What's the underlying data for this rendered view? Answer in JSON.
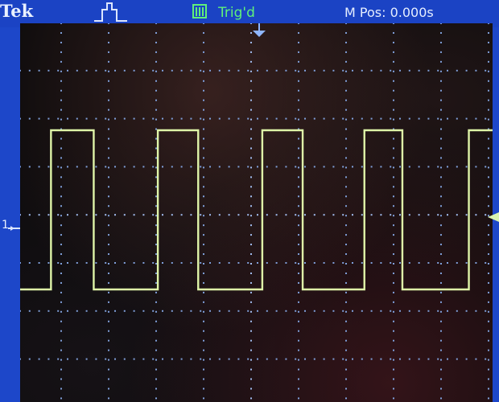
{
  "header": {
    "brand": "Tek",
    "trigger_status": "Trig'd",
    "m_pos_label": "M Pos:",
    "m_pos_value": "0.000s"
  },
  "channel": {
    "label": "1",
    "trace_color": "#dff5a8"
  },
  "waveform": {
    "type": "square",
    "levels": [
      "high",
      "low"
    ],
    "segments": [
      {
        "state": "low",
        "divisions": 0.65
      },
      {
        "state": "high",
        "divisions": 0.9
      },
      {
        "state": "low",
        "divisions": 1.35
      },
      {
        "state": "high",
        "divisions": 0.85
      },
      {
        "state": "low",
        "divisions": 1.35
      },
      {
        "state": "high",
        "divisions": 0.85
      },
      {
        "state": "low",
        "divisions": 1.3
      },
      {
        "state": "high",
        "divisions": 0.8
      },
      {
        "state": "low",
        "divisions": 1.4
      },
      {
        "state": "high",
        "divisions": 0.55
      }
    ]
  },
  "grid": {
    "horizontal_divisions": 10,
    "vertical_divisions": 8
  },
  "colors": {
    "frame": "#1d47c9",
    "screen": "#0c0b0c",
    "grid": "#7f9fd9",
    "trigger_status": "#5ff07a"
  },
  "icons": {
    "trigger_type": "pulse-trigger-icon",
    "acquisition": "acquisition-icon",
    "trigger_position": "trigger-position-arrow-icon",
    "trigger_level": "trigger-level-arrow-icon",
    "channel_ground": "channel-ground-arrow-icon"
  }
}
